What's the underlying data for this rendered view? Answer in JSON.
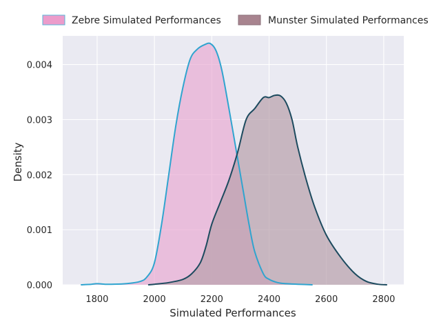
{
  "chart_data": {
    "type": "area",
    "title": "",
    "xlabel": "Simulated Performances",
    "ylabel": "Density",
    "xlim": [
      1680,
      2870
    ],
    "ylim": [
      0,
      0.00452
    ],
    "xticks": [
      1800,
      2000,
      2200,
      2400,
      2600,
      2800
    ],
    "yticks": [
      0.0,
      0.001,
      0.002,
      0.003,
      0.004
    ],
    "ytick_labels": [
      "0.000",
      "0.001",
      "0.002",
      "0.003",
      "0.004"
    ],
    "grid": true,
    "legend_position": "top",
    "series": [
      {
        "name": "Zebre Simulated Performances",
        "fill": "#e8a6cf",
        "fill_opacity": 0.65,
        "line": "#2fa4cf",
        "legend_fill": "#ec9ccb",
        "legend_edge": "#58b6d9",
        "x": [
          1745,
          1780,
          1800,
          1830,
          1850,
          1900,
          1950,
          1975,
          2000,
          2025,
          2050,
          2075,
          2100,
          2125,
          2150,
          2175,
          2195,
          2215,
          2235,
          2260,
          2290,
          2310,
          2330,
          2350,
          2380,
          2400,
          2430,
          2460,
          2500,
          2550
        ],
        "values": [
          0.0,
          1e-05,
          2e-05,
          1e-05,
          1e-05,
          2e-05,
          6e-05,
          0.00015,
          0.0004,
          0.0011,
          0.002,
          0.0029,
          0.0036,
          0.0041,
          0.00428,
          0.00436,
          0.00438,
          0.00425,
          0.0039,
          0.0032,
          0.0023,
          0.0017,
          0.0011,
          0.0006,
          0.0002,
          0.0001,
          4e-05,
          2e-05,
          1e-05,
          0.0
        ]
      },
      {
        "name": "Munster Simulated Performances",
        "fill": "#b8a0ab",
        "fill_opacity": 0.7,
        "line": "#1c4a5e",
        "legend_fill": "#a8848f",
        "legend_edge": "#8a6f79",
        "x": [
          1980,
          2000,
          2050,
          2100,
          2130,
          2160,
          2180,
          2200,
          2230,
          2260,
          2290,
          2320,
          2350,
          2380,
          2400,
          2420,
          2440,
          2460,
          2480,
          2500,
          2530,
          2560,
          2600,
          2650,
          2700,
          2740,
          2780,
          2810
        ],
        "values": [
          0.0,
          1e-05,
          4e-05,
          0.0001,
          0.0002,
          0.0004,
          0.0007,
          0.0011,
          0.0015,
          0.0019,
          0.0024,
          0.003,
          0.0032,
          0.0034,
          0.0034,
          0.00344,
          0.00343,
          0.0033,
          0.003,
          0.0025,
          0.0019,
          0.0014,
          0.0009,
          0.0005,
          0.0002,
          6e-05,
          1e-05,
          0.0
        ]
      }
    ]
  }
}
